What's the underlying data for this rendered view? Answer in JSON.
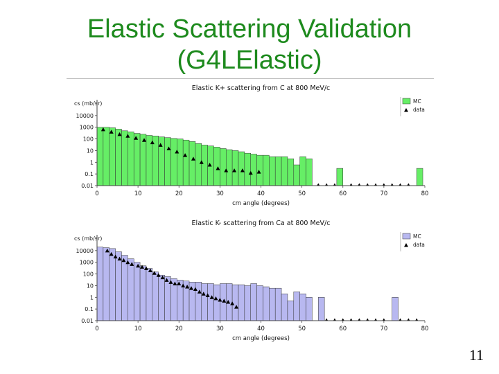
{
  "slide": {
    "title_line1": "Elastic Scattering Validation",
    "title_line2": "(G4LElastic)",
    "page_number": "11"
  },
  "chart_data": [
    {
      "type": "bar",
      "title": "Elastic K+ scattering from C at 800 MeV/c",
      "xlabel": "cm angle (degrees)",
      "ylabel": "cs (mb/sr)",
      "yscale": "log",
      "ylim": [
        0.01,
        100000
      ],
      "yticks": [
        "0.01",
        "0.1",
        "1",
        "10",
        "100",
        "1000",
        "10000"
      ],
      "xlim": [
        0,
        80
      ],
      "xticks": [
        "0",
        "10",
        "20",
        "30",
        "40",
        "50",
        "60",
        "70",
        "80"
      ],
      "bar_color": "#66ee66",
      "bar_width_deg": 1.5,
      "legend": [
        {
          "label": "MC",
          "kind": "box"
        },
        {
          "label": "data",
          "kind": "triangle"
        }
      ],
      "series": [
        {
          "name": "MC",
          "x": [
            0.75,
            2.25,
            3.75,
            5.25,
            6.75,
            8.25,
            9.75,
            11.25,
            12.75,
            14.25,
            15.75,
            17.25,
            18.75,
            20.25,
            21.75,
            23.25,
            24.75,
            26.25,
            27.75,
            29.25,
            30.75,
            32.25,
            33.75,
            35.25,
            36.75,
            38.25,
            39.75,
            41.25,
            42.75,
            44.25,
            45.75,
            47.25,
            48.75,
            50.25,
            51.75,
            59.25,
            78.75
          ],
          "values": [
            1000,
            1000,
            900,
            700,
            500,
            400,
            300,
            250,
            200,
            180,
            150,
            130,
            110,
            100,
            80,
            60,
            40,
            30,
            25,
            20,
            15,
            12,
            10,
            8,
            6,
            5,
            4,
            4,
            3,
            3,
            3,
            2,
            0.6,
            3,
            2,
            0.3,
            0.3
          ]
        },
        {
          "name": "data",
          "x": [
            1.5,
            3.5,
            5.5,
            7.5,
            9.5,
            11.5,
            13.5,
            15.5,
            17.5,
            19.5,
            21.5,
            23.5,
            25.5,
            27.5,
            29.5,
            31.5,
            33.5,
            35.5,
            37.5,
            39.5
          ],
          "values": [
            650,
            400,
            250,
            180,
            120,
            80,
            50,
            30,
            15,
            8,
            4,
            2,
            1,
            0.6,
            0.3,
            0.2,
            0.2,
            0.2,
            0.12,
            0.15
          ]
        }
      ]
    },
    {
      "type": "bar",
      "title": "Elastic K- scattering from Ca at 800 MeV/c",
      "xlabel": "cm angle (degrees)",
      "ylabel": "cs (mb/sr)",
      "yscale": "log",
      "ylim": [
        0.01,
        100000
      ],
      "yticks": [
        "0.01",
        "0.1",
        "1",
        "10",
        "100",
        "1000",
        "10000"
      ],
      "xlim": [
        0,
        80
      ],
      "xticks": [
        "0",
        "10",
        "20",
        "30",
        "40",
        "50",
        "60",
        "70",
        "80"
      ],
      "bar_color": "#b8b8f0",
      "bar_width_deg": 1.5,
      "legend": [
        {
          "label": "MC",
          "kind": "box"
        },
        {
          "label": "data",
          "kind": "triangle"
        }
      ],
      "series": [
        {
          "name": "MC",
          "x": [
            0.75,
            2.25,
            3.75,
            5.25,
            6.75,
            8.25,
            9.75,
            11.25,
            12.75,
            14.25,
            15.75,
            17.25,
            18.75,
            20.25,
            21.75,
            23.25,
            24.75,
            26.25,
            27.75,
            29.25,
            30.75,
            32.25,
            33.75,
            35.25,
            36.75,
            38.25,
            39.75,
            41.25,
            42.75,
            44.25,
            45.75,
            47.25,
            48.75,
            50.25,
            51.75,
            54.75,
            72.75
          ],
          "values": [
            20000,
            18000,
            15000,
            8000,
            4000,
            2000,
            1000,
            500,
            300,
            150,
            80,
            60,
            40,
            30,
            25,
            20,
            20,
            15,
            15,
            12,
            15,
            15,
            12,
            12,
            10,
            15,
            10,
            8,
            6,
            6,
            2,
            0.5,
            3,
            2,
            1,
            1,
            1
          ]
        },
        {
          "name": "data",
          "x": [
            2.5,
            3.5,
            4.5,
            5.5,
            6.5,
            7.5,
            8.5,
            10,
            11,
            12,
            13,
            14,
            15,
            16,
            17,
            18,
            19,
            20,
            21,
            22,
            23,
            24,
            25,
            26,
            27,
            28,
            29,
            30,
            31,
            32,
            33,
            34
          ],
          "values": [
            10000,
            5000,
            3000,
            2000,
            1500,
            1000,
            700,
            500,
            400,
            300,
            200,
            120,
            80,
            50,
            30,
            20,
            15,
            15,
            10,
            8,
            6,
            5,
            3,
            2,
            1.5,
            1,
            0.8,
            0.6,
            0.5,
            0.4,
            0.3,
            0.15
          ]
        }
      ]
    }
  ]
}
